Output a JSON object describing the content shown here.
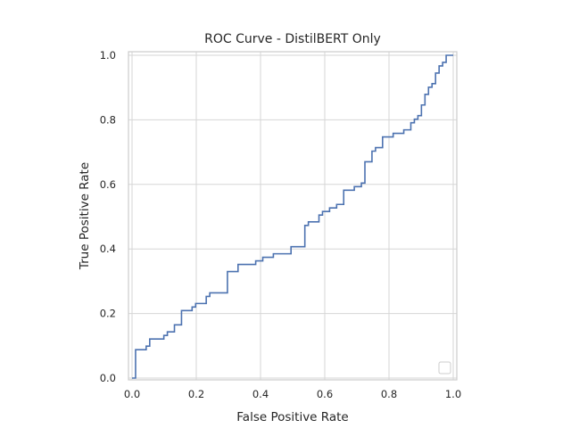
{
  "chart_data": {
    "type": "line",
    "title": "ROC Curve - DistilBERT Only",
    "xlabel": "False Positive Rate",
    "ylabel": "True Positive Rate",
    "xlim": [
      0.0,
      1.0
    ],
    "ylim": [
      0.0,
      1.0
    ],
    "xticks": [
      "0.0",
      "0.2",
      "0.4",
      "0.6",
      "0.8",
      "1.0"
    ],
    "yticks": [
      "0.0",
      "0.2",
      "0.4",
      "0.6",
      "0.8",
      "1.0"
    ],
    "grid": true,
    "legend": "lower-right, empty",
    "series": [
      {
        "color": "#4c72b0",
        "step": true,
        "x": [
          0.0,
          0.011,
          0.011,
          0.044,
          0.044,
          0.055,
          0.055,
          0.099,
          0.099,
          0.11,
          0.11,
          0.132,
          0.132,
          0.154,
          0.154,
          0.187,
          0.187,
          0.198,
          0.198,
          0.231,
          0.231,
          0.242,
          0.242,
          0.297,
          0.297,
          0.33,
          0.33,
          0.385,
          0.385,
          0.407,
          0.407,
          0.44,
          0.44,
          0.495,
          0.495,
          0.538,
          0.538,
          0.549,
          0.549,
          0.582,
          0.582,
          0.593,
          0.593,
          0.615,
          0.615,
          0.637,
          0.637,
          0.659,
          0.659,
          0.692,
          0.692,
          0.714,
          0.714,
          0.725,
          0.725,
          0.747,
          0.747,
          0.758,
          0.758,
          0.78,
          0.78,
          0.813,
          0.813,
          0.846,
          0.846,
          0.868,
          0.868,
          0.879,
          0.879,
          0.89,
          0.89,
          0.901,
          0.901,
          0.912,
          0.912,
          0.923,
          0.923,
          0.934,
          0.934,
          0.945,
          0.945,
          0.956,
          0.956,
          0.967,
          0.967,
          0.978,
          0.978,
          0.989,
          0.989,
          1.0
        ],
        "y": [
          0.0,
          0.0,
          0.088,
          0.088,
          0.099,
          0.099,
          0.121,
          0.121,
          0.132,
          0.132,
          0.143,
          0.143,
          0.165,
          0.165,
          0.209,
          0.209,
          0.22,
          0.22,
          0.231,
          0.231,
          0.253,
          0.253,
          0.264,
          0.264,
          0.33,
          0.33,
          0.352,
          0.352,
          0.363,
          0.363,
          0.374,
          0.374,
          0.385,
          0.385,
          0.407,
          0.407,
          0.473,
          0.473,
          0.484,
          0.484,
          0.505,
          0.505,
          0.516,
          0.516,
          0.527,
          0.527,
          0.538,
          0.538,
          0.582,
          0.582,
          0.593,
          0.593,
          0.604,
          0.604,
          0.67,
          0.67,
          0.703,
          0.703,
          0.714,
          0.714,
          0.747,
          0.747,
          0.758,
          0.758,
          0.769,
          0.769,
          0.791,
          0.791,
          0.802,
          0.802,
          0.813,
          0.813,
          0.846,
          0.846,
          0.879,
          0.879,
          0.901,
          0.901,
          0.912,
          0.912,
          0.945,
          0.945,
          0.967,
          0.967,
          0.978,
          0.978,
          1.0,
          1.0,
          1.0,
          1.0
        ]
      }
    ]
  }
}
